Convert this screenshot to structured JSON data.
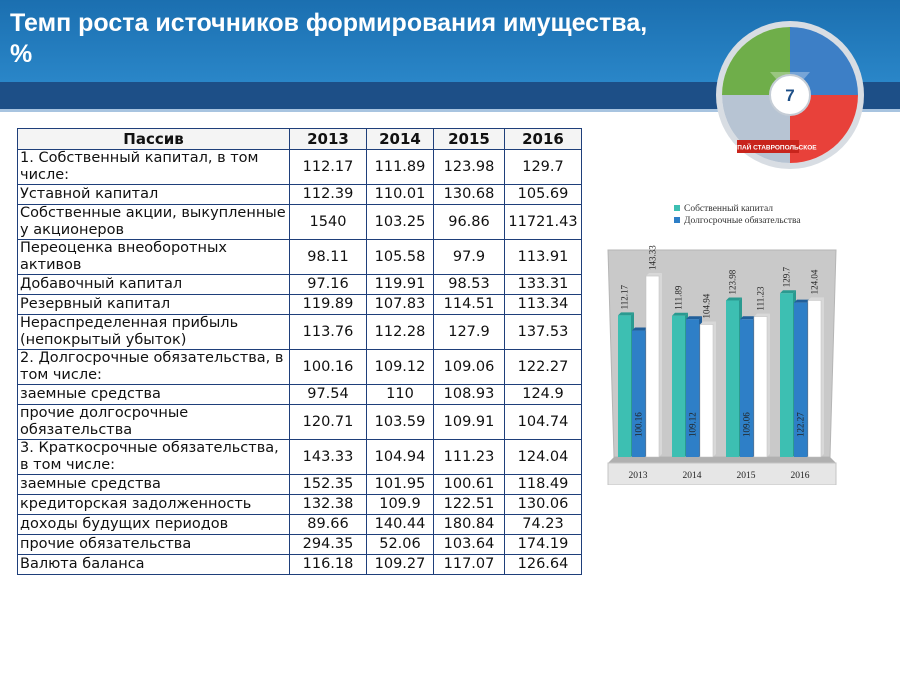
{
  "slide": {
    "title": "Темп роста источников формирования имущества, %",
    "page_number": "7",
    "banner_text": "ПОКУПАЙ СТАВРОПОЛЬСКОЕ"
  },
  "table": {
    "headers": [
      "Пассив",
      "2013",
      "2014",
      "2015",
      "2016"
    ],
    "rows": [
      {
        "label": "1. Собственный капитал, в том числе:",
        "values": [
          "112.17",
          "111.89",
          "123.98",
          "129.7"
        ]
      },
      {
        "label": "Уставной капитал",
        "values": [
          "112.39",
          "110.01",
          "130.68",
          "105.69"
        ]
      },
      {
        "label": "Собственные акции, выкупленные у акционеров",
        "values": [
          "1540",
          "103.25",
          "96.86",
          "11721.43"
        ]
      },
      {
        "label": "Переоценка внеоборотных активов",
        "values": [
          "98.11",
          "105.58",
          "97.9",
          "113.91"
        ]
      },
      {
        "label": "Добавочный капитал",
        "values": [
          "97.16",
          "119.91",
          "98.53",
          "133.31"
        ]
      },
      {
        "label": "Резервный капитал",
        "values": [
          "119.89",
          "107.83",
          "114.51",
          "113.34"
        ]
      },
      {
        "label": "Нераспределенная прибыль (непокрытый убыток)",
        "values": [
          "113.76",
          "112.28",
          "127.9",
          "137.53"
        ]
      },
      {
        "label": "2. Долгосрочные обязательства, в том числе:",
        "values": [
          "100.16",
          "109.12",
          "109.06",
          "122.27"
        ]
      },
      {
        "label": "заемные средства",
        "values": [
          "97.54",
          "110",
          "108.93",
          "124.9"
        ]
      },
      {
        "label": "прочие долгосрочные обязательства",
        "values": [
          "120.71",
          "103.59",
          "109.91",
          "104.74"
        ]
      },
      {
        "label": "3. Краткосрочные обязательства, в том числе:",
        "values": [
          "143.33",
          "104.94",
          "111.23",
          "124.04"
        ]
      },
      {
        "label": "заемные средства",
        "values": [
          "152.35",
          "101.95",
          "100.61",
          "118.49"
        ]
      },
      {
        "label": "кредиторская задолженность",
        "values": [
          "132.38",
          "109.9",
          "122.51",
          "130.06"
        ]
      },
      {
        "label": "доходы будущих периодов",
        "values": [
          "89.66",
          "140.44",
          "180.84",
          "74.23"
        ]
      },
      {
        "label": "прочие обязательства",
        "values": [
          "294.35",
          "52.06",
          "103.64",
          "174.19"
        ]
      },
      {
        "label": "Валюта баланса",
        "values": [
          "116.18",
          "109.27",
          "117.07",
          "126.64"
        ]
      }
    ]
  },
  "chart_data": {
    "type": "bar",
    "categories": [
      "2013",
      "2014",
      "2015",
      "2016"
    ],
    "series": [
      {
        "name": "Собственный капитал",
        "values": [
          112.17,
          111.89,
          123.98,
          129.7
        ],
        "color": "#3dbfb2"
      },
      {
        "name": "Долгосрочные обязательства",
        "values": [
          100.16,
          109.12,
          109.06,
          122.27
        ],
        "color": "#2e7fc7"
      },
      {
        "name": "",
        "values": [
          143.33,
          104.94,
          111.23,
          124.04
        ],
        "color": "#ffffff"
      }
    ],
    "legend_position": "top",
    "grid": false
  },
  "colors": {
    "header": "#2a86c8",
    "strip": "#1d4f87",
    "table_border": "#1f3f7a"
  }
}
